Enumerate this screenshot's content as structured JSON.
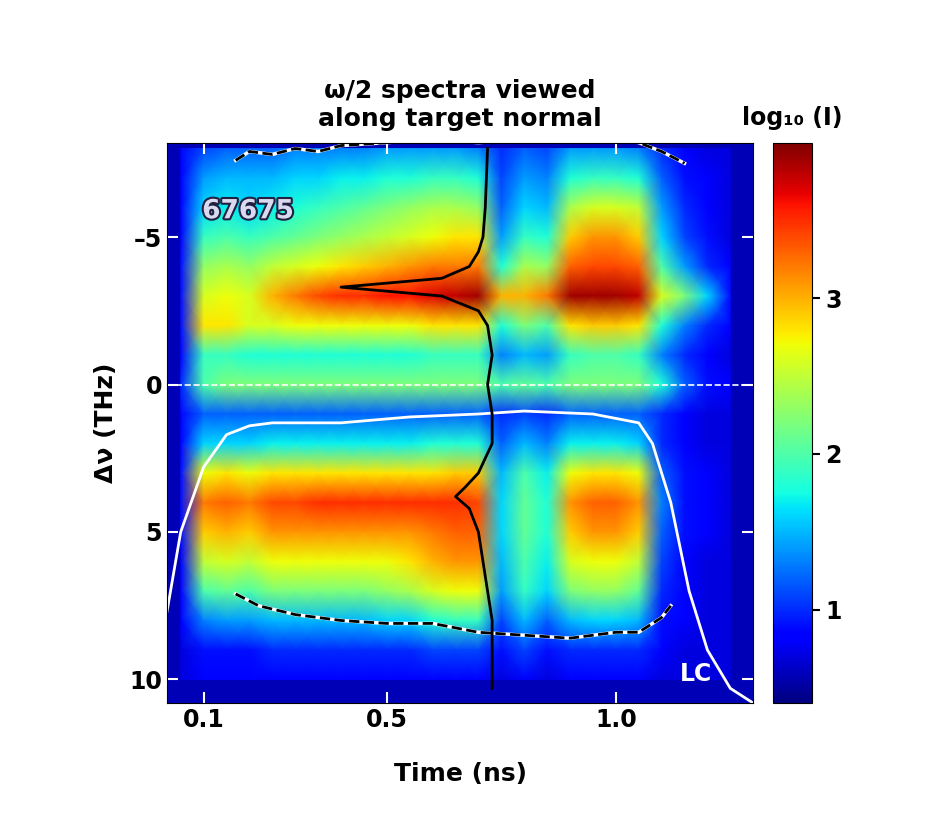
{
  "chart_data": {
    "type": "heatmap",
    "title": "ω/2 spectra viewed\nalong target normal",
    "x_label": "Time (ns)",
    "y_label": "Δν (THz)",
    "xlim": [
      0.02,
      1.3
    ],
    "xticks": [
      0.1,
      0.5,
      1.0
    ],
    "ylim": [
      10.8,
      -8.2
    ],
    "yticks": [
      {
        "value": -5,
        "label": "–5"
      },
      0,
      5,
      10
    ],
    "colorbar": {
      "label": "log₁₀ (I)",
      "range": [
        0.4,
        4.0
      ],
      "ticks": [
        1,
        2,
        3
      ],
      "color": "jet"
    },
    "annotations": [
      "67675",
      "LC"
    ],
    "reference_line": 0,
    "x": [
      0.05,
      0.1,
      0.15,
      0.2,
      0.25,
      0.3,
      0.35,
      0.4,
      0.45,
      0.5,
      0.55,
      0.6,
      0.65,
      0.7,
      0.75,
      0.8,
      0.85,
      0.9,
      0.95,
      1.0,
      1.05,
      1.1,
      1.15,
      1.2,
      1.25
    ],
    "y": [
      -8,
      -7,
      -6,
      -5,
      -4,
      -3,
      -2,
      -1,
      0,
      1,
      2,
      3,
      4,
      5,
      6,
      7,
      8,
      9,
      10
    ],
    "cells": [
      [
        0.8,
        1.1,
        1.2,
        1.2,
        1.2,
        1.3,
        1.3,
        1.3,
        1.3,
        1.4,
        1.4,
        1.4,
        1.4,
        1.3,
        1.0,
        1.2,
        1.1,
        1.4,
        1.4,
        1.4,
        1.3,
        1.0,
        0.8,
        0.7,
        0.7
      ],
      [
        0.8,
        1.4,
        1.5,
        1.5,
        1.5,
        1.6,
        1.6,
        1.7,
        1.7,
        1.8,
        1.8,
        1.9,
        1.9,
        1.8,
        1.1,
        1.4,
        1.3,
        1.8,
        1.9,
        1.9,
        1.8,
        1.2,
        0.9,
        0.8,
        0.7
      ],
      [
        0.8,
        1.6,
        1.7,
        1.6,
        1.7,
        1.8,
        1.9,
        2.0,
        2.1,
        2.2,
        2.3,
        2.4,
        2.4,
        2.3,
        1.2,
        1.6,
        1.5,
        2.4,
        2.6,
        2.6,
        2.5,
        1.4,
        1.0,
        0.8,
        0.7
      ],
      [
        0.8,
        1.9,
        2.0,
        1.9,
        2.0,
        2.1,
        2.2,
        2.3,
        2.4,
        2.5,
        2.6,
        2.7,
        2.8,
        2.8,
        1.4,
        1.9,
        1.8,
        2.9,
        3.1,
        3.1,
        2.9,
        1.6,
        1.1,
        0.9,
        0.7
      ],
      [
        0.9,
        2.3,
        2.4,
        2.3,
        2.5,
        2.6,
        2.7,
        2.8,
        2.9,
        3.0,
        3.1,
        3.2,
        3.2,
        3.2,
        1.8,
        2.4,
        2.3,
        3.3,
        3.4,
        3.4,
        3.3,
        2.0,
        1.4,
        1.0,
        0.8
      ],
      [
        0.9,
        2.6,
        2.7,
        2.6,
        3.0,
        3.2,
        3.4,
        3.5,
        3.5,
        3.6,
        3.6,
        3.7,
        3.8,
        3.9,
        3.0,
        3.0,
        3.2,
        3.9,
        3.9,
        3.9,
        3.8,
        2.6,
        2.2,
        1.6,
        0.9
      ],
      [
        0.9,
        2.8,
        2.8,
        2.6,
        2.6,
        2.7,
        2.7,
        2.7,
        2.7,
        2.7,
        2.7,
        2.8,
        2.8,
        2.8,
        1.8,
        2.2,
        2.0,
        2.8,
        2.9,
        2.9,
        2.8,
        1.8,
        1.3,
        1.0,
        0.8
      ],
      [
        0.8,
        1.9,
        1.9,
        1.8,
        1.8,
        1.8,
        1.8,
        1.8,
        1.8,
        1.8,
        1.8,
        1.9,
        1.9,
        1.9,
        1.3,
        1.5,
        1.4,
        1.9,
        2.0,
        2.0,
        1.9,
        1.3,
        1.0,
        0.8,
        0.7
      ],
      [
        1.0,
        2.0,
        2.2,
        2.2,
        2.2,
        2.2,
        2.2,
        2.2,
        2.2,
        2.2,
        2.2,
        2.2,
        2.2,
        2.2,
        2.0,
        2.1,
        2.0,
        2.2,
        2.2,
        2.2,
        2.2,
        1.8,
        1.2,
        0.9,
        0.8
      ],
      [
        0.8,
        1.2,
        1.2,
        1.2,
        1.2,
        1.2,
        1.2,
        1.2,
        1.2,
        1.2,
        1.2,
        1.2,
        1.2,
        1.2,
        1.0,
        1.1,
        1.0,
        1.2,
        1.2,
        1.2,
        1.2,
        1.0,
        0.8,
        0.7,
        0.7
      ],
      [
        0.8,
        1.6,
        1.6,
        1.6,
        1.7,
        1.7,
        1.7,
        1.7,
        1.7,
        1.7,
        1.7,
        1.8,
        1.8,
        1.8,
        1.2,
        1.5,
        1.3,
        1.7,
        1.7,
        1.7,
        1.6,
        1.0,
        0.8,
        0.7,
        0.7
      ],
      [
        0.9,
        2.7,
        2.8,
        2.7,
        2.8,
        2.8,
        2.8,
        2.8,
        2.8,
        2.8,
        2.8,
        2.8,
        2.9,
        2.9,
        1.5,
        2.0,
        1.7,
        2.7,
        2.8,
        2.8,
        2.7,
        1.2,
        0.9,
        0.8,
        0.7
      ],
      [
        0.9,
        3.2,
        3.3,
        3.2,
        3.4,
        3.4,
        3.5,
        3.5,
        3.5,
        3.5,
        3.5,
        3.5,
        3.5,
        3.4,
        1.6,
        2.1,
        1.8,
        3.1,
        3.3,
        3.3,
        3.1,
        1.3,
        0.9,
        0.8,
        0.7
      ],
      [
        0.9,
        2.9,
        3.0,
        2.9,
        3.1,
        3.1,
        3.1,
        3.1,
        3.1,
        3.1,
        3.1,
        3.2,
        3.3,
        3.3,
        1.6,
        2.1,
        1.8,
        2.9,
        3.1,
        3.1,
        2.9,
        1.2,
        0.9,
        0.8,
        0.7
      ],
      [
        0.8,
        2.5,
        2.6,
        2.5,
        2.7,
        2.7,
        2.7,
        2.7,
        2.7,
        2.7,
        2.8,
        3.0,
        3.1,
        3.1,
        1.5,
        2.0,
        1.7,
        2.6,
        2.7,
        2.7,
        2.5,
        1.1,
        0.8,
        0.7,
        0.7
      ],
      [
        0.8,
        2.0,
        2.1,
        2.0,
        2.2,
        2.2,
        2.2,
        2.2,
        2.2,
        2.3,
        2.4,
        2.6,
        2.7,
        2.7,
        1.4,
        1.9,
        1.6,
        2.2,
        2.3,
        2.3,
        2.1,
        1.0,
        0.8,
        0.7,
        0.7
      ],
      [
        0.8,
        1.3,
        1.4,
        1.4,
        1.5,
        1.5,
        1.5,
        1.5,
        1.5,
        1.6,
        1.6,
        1.8,
        1.9,
        1.9,
        1.1,
        1.5,
        1.2,
        1.5,
        1.6,
        1.6,
        1.5,
        0.9,
        0.8,
        0.7,
        0.7
      ],
      [
        0.7,
        0.9,
        0.9,
        0.9,
        1.0,
        1.0,
        1.0,
        1.0,
        1.0,
        1.0,
        1.0,
        1.1,
        1.1,
        1.1,
        0.9,
        1.1,
        0.9,
        1.0,
        1.0,
        1.0,
        1.0,
        0.8,
        0.7,
        0.7,
        0.7
      ],
      [
        0.7,
        0.8,
        0.8,
        0.8,
        0.8,
        0.8,
        0.8,
        0.8,
        0.8,
        0.8,
        0.8,
        0.8,
        0.8,
        0.8,
        0.7,
        0.8,
        0.7,
        0.8,
        0.8,
        0.8,
        0.8,
        0.7,
        0.7,
        0.7,
        0.7
      ]
    ],
    "curves": [
      {
        "color": "white",
        "line_style": "solid",
        "x": [
          0.02,
          0.05,
          0.1,
          0.15,
          0.2,
          0.25,
          0.4,
          0.55,
          0.7,
          0.8,
          0.95,
          1.05,
          1.08,
          1.12,
          1.16,
          1.2,
          1.25,
          1.3
        ],
        "y": [
          7.7,
          5.0,
          2.8,
          1.7,
          1.4,
          1.3,
          1.3,
          1.1,
          1.0,
          0.9,
          1.0,
          1.3,
          2.0,
          4.0,
          7.0,
          9.0,
          10.3,
          10.8
        ]
      },
      {
        "color": "black",
        "line_style": "dashed",
        "x": [
          0.17,
          0.2,
          0.25,
          0.3,
          0.35,
          0.4,
          0.5,
          0.6,
          0.7,
          0.8,
          0.9,
          1.0,
          1.05,
          1.1,
          1.15
        ],
        "y": [
          -7.6,
          -7.9,
          -7.8,
          -8.0,
          -7.9,
          -8.1,
          -8.2,
          -8.3,
          -8.2,
          -8.3,
          -8.3,
          -8.3,
          -8.2,
          -7.9,
          -7.5
        ]
      },
      {
        "color": "black",
        "line_style": "dashed",
        "x": [
          0.17,
          0.22,
          0.3,
          0.4,
          0.5,
          0.6,
          0.7,
          0.8,
          0.9,
          1.0,
          1.05,
          1.1,
          1.12
        ],
        "y": [
          7.1,
          7.5,
          7.8,
          8.0,
          8.1,
          8.1,
          8.4,
          8.5,
          8.6,
          8.4,
          8.4,
          7.9,
          7.5
        ]
      },
      {
        "color": "black",
        "line_style": "solid",
        "x": [
          0.72,
          0.715,
          0.71,
          0.7,
          0.68,
          0.62,
          0.4,
          0.62,
          0.7,
          0.72,
          0.73,
          0.72,
          0.73,
          0.73,
          0.7,
          0.67,
          0.65,
          0.68,
          0.7,
          0.71,
          0.72,
          0.73,
          0.73
        ],
        "y": [
          -8.0,
          -6,
          -5,
          -4.5,
          -4,
          -3.6,
          -3.3,
          -3.0,
          -2.5,
          -2,
          -1,
          0,
          1,
          2,
          3,
          3.5,
          3.8,
          4.2,
          5,
          6,
          7,
          8,
          10.3
        ]
      }
    ]
  }
}
